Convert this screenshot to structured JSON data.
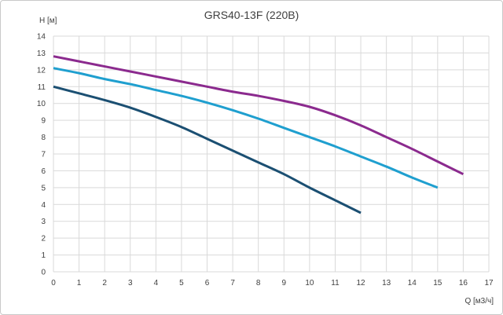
{
  "chart_data": {
    "type": "line",
    "title": "GRS40-13F (220В)",
    "xlabel": "Q [м3/ч]",
    "ylabel": "H [м]",
    "xlim": [
      0,
      17
    ],
    "ylim": [
      0,
      14
    ],
    "x_ticks": [
      "0",
      "1",
      "2",
      "3",
      "4",
      "5",
      "6",
      "7",
      "8",
      "9",
      "10",
      "11",
      "12",
      "13",
      "14",
      "15",
      "16",
      "17"
    ],
    "y_ticks": [
      "0",
      "1",
      "2",
      "3",
      "4",
      "5",
      "6",
      "7",
      "8",
      "9",
      "10",
      "11",
      "12",
      "13",
      "14"
    ],
    "grid": true,
    "series": [
      {
        "color": "#1b4f72",
        "x": [
          0,
          1,
          2,
          3,
          4,
          5,
          6,
          7,
          8,
          9,
          10,
          11,
          12
        ],
        "y": [
          11.0,
          10.6,
          10.2,
          9.75,
          9.2,
          8.6,
          7.9,
          7.2,
          6.5,
          5.8,
          5.0,
          4.25,
          3.5
        ]
      },
      {
        "color": "#1f9fcf",
        "x": [
          0,
          1,
          2,
          3,
          4,
          5,
          6,
          7,
          8,
          9,
          10,
          11,
          12,
          13,
          14,
          15
        ],
        "y": [
          12.1,
          11.8,
          11.45,
          11.15,
          10.8,
          10.45,
          10.05,
          9.6,
          9.1,
          8.55,
          8.0,
          7.45,
          6.85,
          6.25,
          5.6,
          5.0
        ]
      },
      {
        "color": "#8b2a8e",
        "x": [
          0,
          1,
          2,
          3,
          4,
          5,
          6,
          7,
          8,
          9,
          10,
          11,
          12,
          13,
          14,
          15,
          16
        ],
        "y": [
          12.8,
          12.5,
          12.2,
          11.9,
          11.6,
          11.3,
          11.0,
          10.7,
          10.45,
          10.15,
          9.8,
          9.3,
          8.7,
          8.0,
          7.3,
          6.55,
          5.8
        ]
      }
    ]
  }
}
